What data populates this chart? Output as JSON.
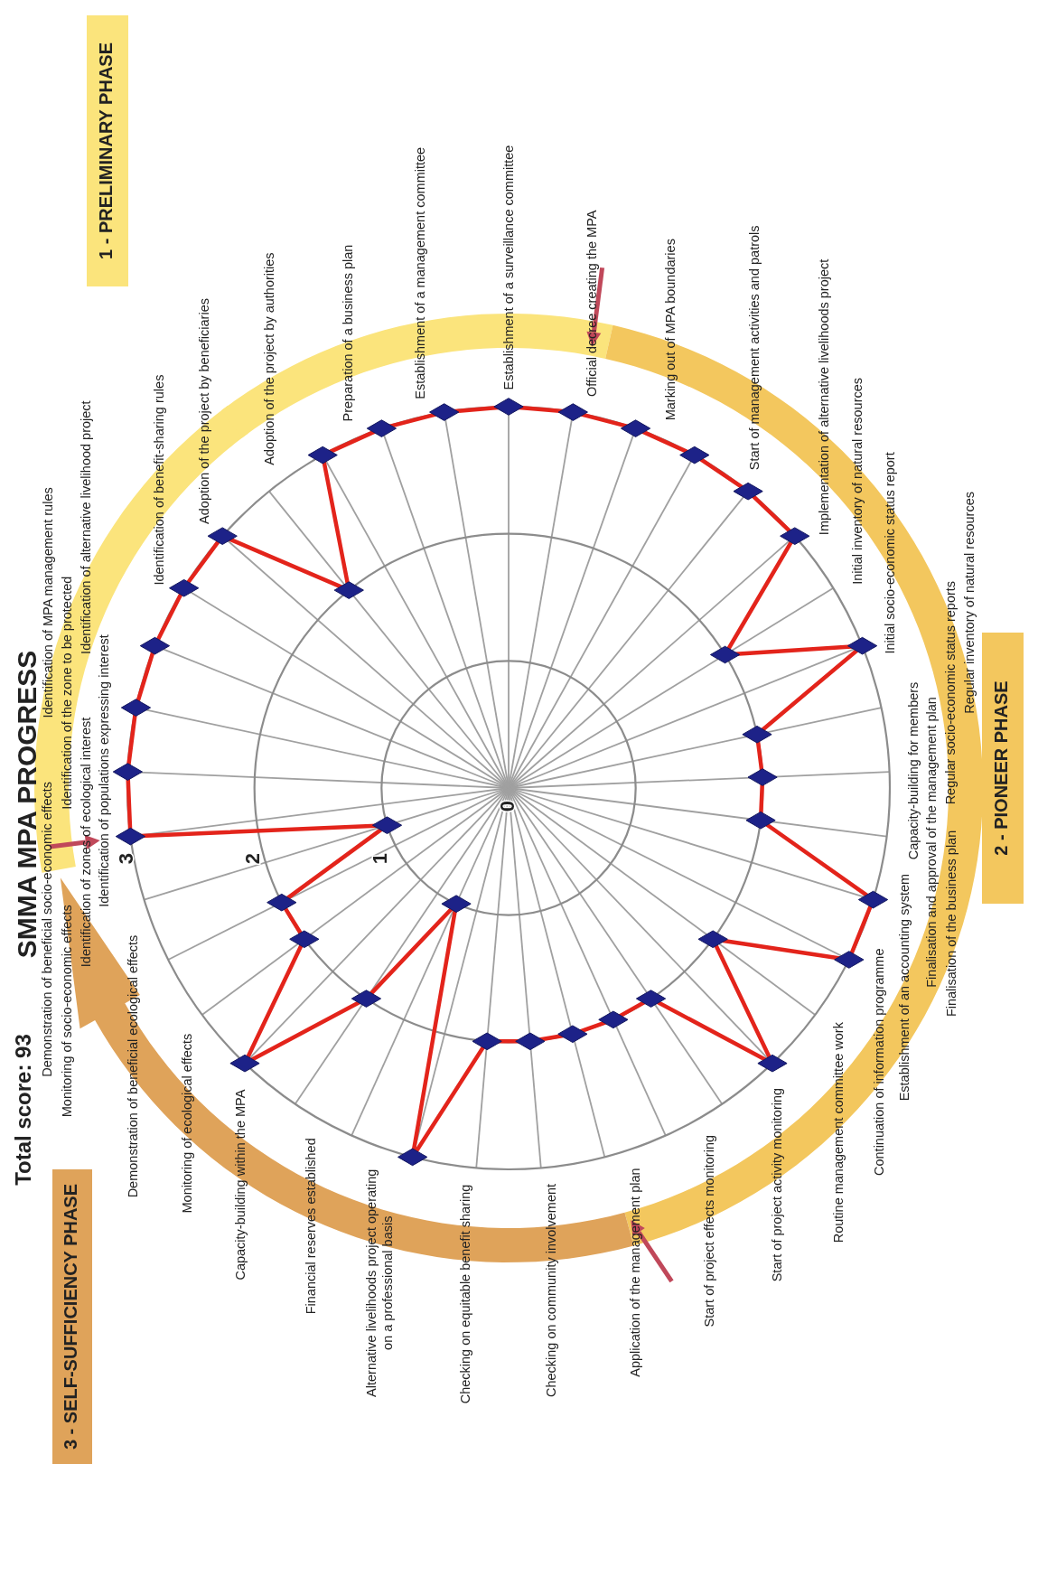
{
  "chart_data": {
    "type": "radar",
    "title": "SMMA MPA PROGRESS",
    "categories": [
      "Establishment of a surveillance committee",
      "Official decree creating the MPA",
      "Marking out of MPA boundaries",
      "Start of management activities and patrols",
      "Implementation of alternative livelihoods project",
      "Initial inventory of natural resources",
      "Initial socio-economic status report",
      "Regular inventory of natural resources",
      "Regular socio-economic status reports",
      "Capacity-building for members",
      "Finalisation and approval of the management plan",
      "Finalisation of the business plan",
      "Establishment of an accounting system",
      "Continuation of information programme",
      "Routine management committee work",
      "Start of project activity monitoring",
      "Start of project effects monitoring",
      "Application of the management plan",
      "Checking on community involvement",
      "Checking on equitable benefit sharing",
      "Alternative livelihoods project operating on a professional basis",
      "Financial reserves established",
      "Capacity-building within the MPA",
      "Monitoring of ecological effects",
      "Demonstration of beneficial ecological effects",
      "Monitoring of socio-economic effects",
      "Demonstration of beneficial socio-economic effects",
      "Identification of zones of ecological interest",
      "Identification of populations expressing interest",
      "Identification of the zone to be protected",
      "Identification of MPA management rules",
      "Identification of alternative livelihood project",
      "Identification of benefit-sharing rules",
      "Adoption of the project by beneficiaries",
      "Adoption of the project by authorities",
      "Preparation of a business plan",
      "Establishment of a management committee"
    ],
    "series": [
      {
        "color": "#e3241b",
        "values": [
          3,
          3,
          3,
          3,
          3,
          3,
          2,
          3,
          2,
          2,
          2,
          3,
          3,
          2,
          3,
          2,
          2,
          2,
          2,
          2,
          3,
          1,
          2,
          3,
          2,
          2,
          1,
          3,
          3,
          3,
          3,
          3,
          3,
          2,
          3,
          3,
          3
        ]
      }
    ],
    "ylim": [
      0,
      3
    ],
    "yticks": [
      0,
      1,
      2,
      3
    ],
    "grid": true,
    "marker": "diamond",
    "annotations": [
      "Total score: 93",
      "1 - PRELIMINARY PHASE",
      "2 - PIONEER PHASE",
      "3 - SELF-SUFFICIENCY PHASE"
    ]
  }
}
